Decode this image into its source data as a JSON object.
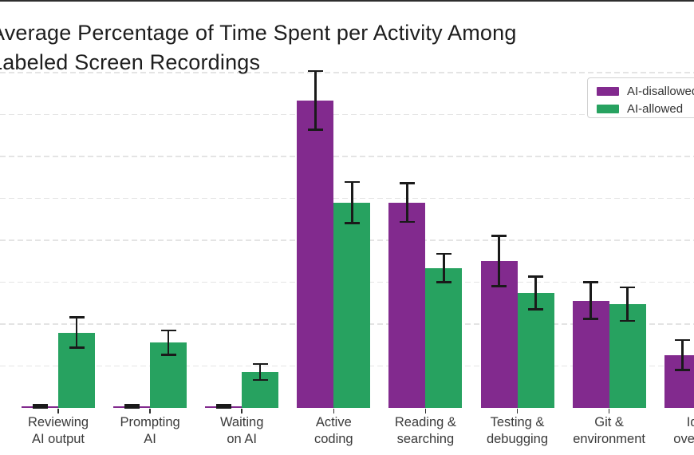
{
  "chart_data": {
    "type": "bar",
    "title": "Average Percentage of Time Spent per Activity Among\nLabeled Screen Recordings",
    "units": "percent of time",
    "categories": [
      "Reviewing\nAI output",
      "Prompting\nAI",
      "Waiting\non AI",
      "Active\ncoding",
      "Reading &\nsearching",
      "Testing &\ndebugging",
      "Git &\nenvironment",
      "Idle /\noverhead"
    ],
    "series": [
      {
        "name": "AI-disallowed",
        "color": "#822a8e",
        "values": [
          0.2,
          0.2,
          0.2,
          36.7,
          24.5,
          17.5,
          12.8,
          6.3
        ],
        "errors": [
          0.15,
          0.15,
          0.15,
          3.5,
          2.3,
          3.0,
          2.2,
          1.8
        ]
      },
      {
        "name": "AI-allowed",
        "color": "#27a260",
        "values": [
          9.0,
          7.8,
          4.3,
          24.5,
          16.7,
          13.7,
          12.4,
          null
        ],
        "errors": [
          1.8,
          1.45,
          0.95,
          2.45,
          1.7,
          1.95,
          2.0,
          null
        ]
      }
    ],
    "xlabel": "",
    "ylabel": "",
    "y_axis": {
      "min": 0,
      "max": 42,
      "gridline_step": 5,
      "tick_labels_visible": false
    },
    "grid": "horizontal-dashed",
    "legend_position": "upper-right",
    "error_bars": true
  }
}
